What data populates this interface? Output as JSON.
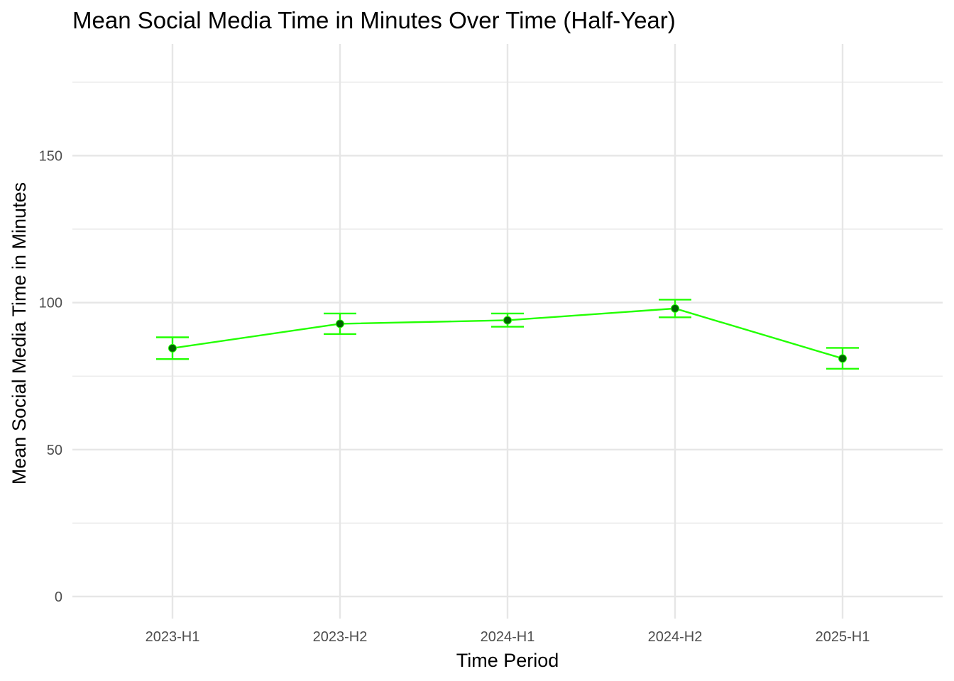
{
  "chart_data": {
    "type": "line",
    "title": "Mean Social Media Time in Minutes Over Time (Half-Year)",
    "xlabel": "Time Period",
    "ylabel": "Mean Social Media Time in Minutes",
    "categories": [
      "2023-H1",
      "2023-H2",
      "2024-H1",
      "2024-H2",
      "2025-H1"
    ],
    "series": [
      {
        "values": [
          84.5,
          92.8,
          94.0,
          98.0,
          81.0
        ],
        "error_lower": [
          80.8,
          89.3,
          91.8,
          95.0,
          77.5
        ],
        "error_upper": [
          88.2,
          96.3,
          96.3,
          101.0,
          84.6
        ]
      }
    ],
    "ylim": [
      -7.5,
      188
    ],
    "y_ticks": [
      0,
      50,
      100,
      150
    ],
    "y_tick_labels": [
      "0",
      "50",
      "100",
      "150"
    ],
    "y_minor_ticks": [
      25,
      75,
      125,
      175
    ],
    "grid": true,
    "line_color": "#22ff00",
    "point_color": "#006400",
    "errorbar_color": "#22ff00",
    "grid_color": "#e6e6e6"
  }
}
